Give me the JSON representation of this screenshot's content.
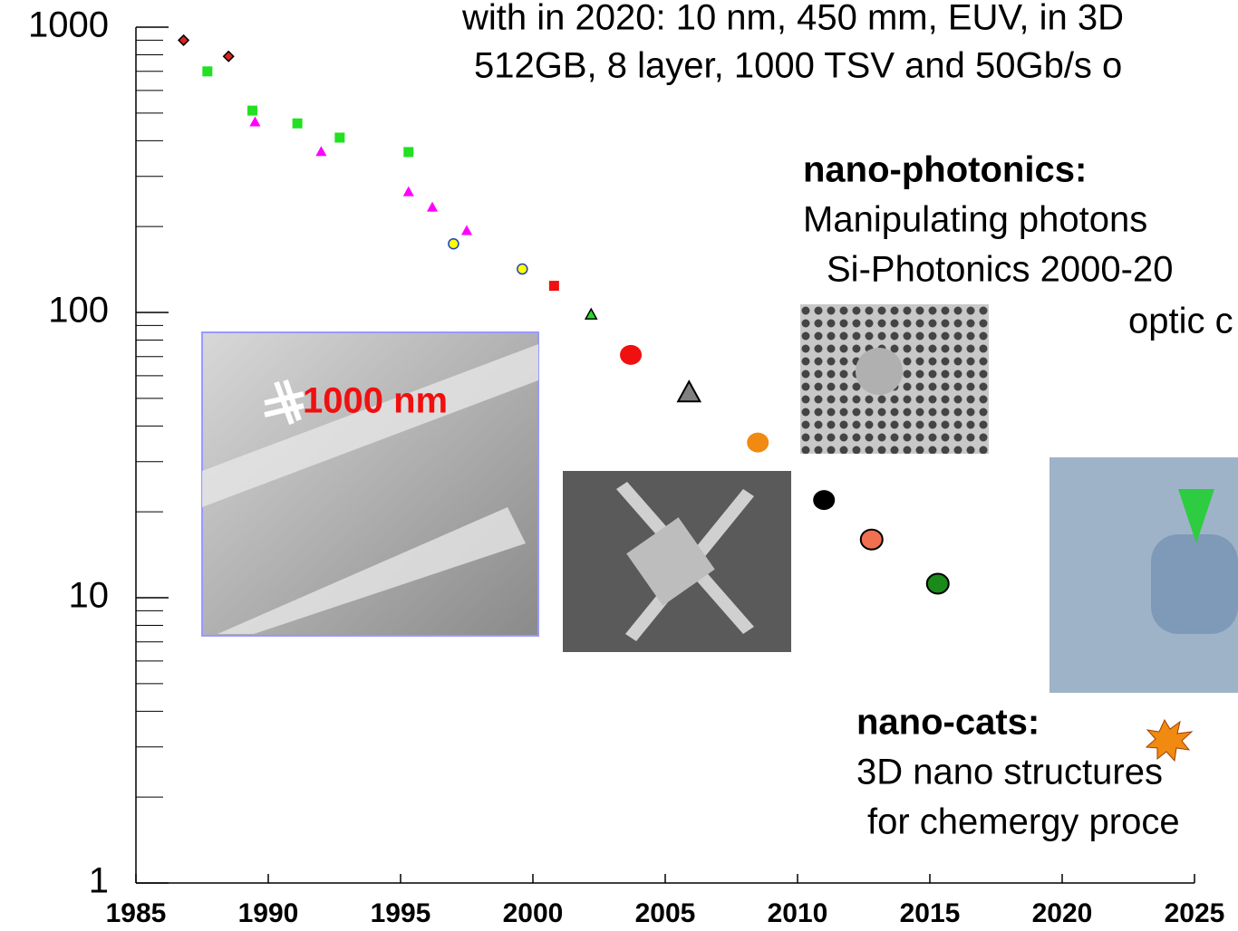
{
  "chart_data": {
    "type": "scatter",
    "yscale": "log",
    "xlim": [
      1985,
      2025
    ],
    "xticks": [
      1985,
      1990,
      1995,
      2000,
      2005,
      2010,
      2015,
      2020,
      2025
    ],
    "ylim": [
      1,
      1000
    ],
    "yticks": [
      1,
      10,
      100,
      1000
    ],
    "minor_yticks": [
      2,
      3,
      4,
      5,
      6,
      7,
      8,
      9,
      20,
      30,
      40,
      50,
      60,
      70,
      80,
      90,
      200,
      300,
      400,
      500,
      600,
      700,
      800,
      900
    ],
    "series": [
      {
        "marker": "diamond",
        "color": "#e02020",
        "edgecolor": "#000000",
        "x": [
          1986.8,
          1988.5
        ],
        "values": [
          900,
          790
        ]
      },
      {
        "marker": "square",
        "color": "#22e022",
        "x": [
          1987.7,
          1989.4,
          1991.1,
          1992.7,
          1995.3
        ],
        "values": [
          700,
          510,
          460,
          410,
          365
        ]
      },
      {
        "marker": "triangle",
        "color": "#ff00ff",
        "x": [
          1989.5,
          1992.0,
          1995.3,
          1996.2,
          1997.5
        ],
        "values": [
          464,
          365,
          264,
          233,
          193
        ]
      },
      {
        "marker": "circle",
        "color": "#ffff00",
        "edgecolor": "#2040c0",
        "x": [
          1997.0,
          1999.6
        ],
        "values": [
          174,
          142
        ]
      },
      {
        "marker": "square",
        "color": "#f01010",
        "x": [
          2000.8
        ],
        "values": [
          124
        ]
      },
      {
        "marker": "triangle",
        "color": "#22e022",
        "edgecolor": "#000000",
        "x": [
          2002.2
        ],
        "values": [
          98
        ]
      },
      {
        "marker": "circle-large",
        "color": "#f01010",
        "x": [
          2003.7
        ],
        "values": [
          71
        ]
      },
      {
        "marker": "triangle-large",
        "color": "#808080",
        "edgecolor": "#000000",
        "x": [
          2005.9
        ],
        "values": [
          52
        ]
      },
      {
        "marker": "circle-large",
        "color": "#f08a10",
        "x": [
          2008.5
        ],
        "values": [
          35
        ]
      },
      {
        "marker": "circle-large",
        "color": "#000000",
        "x": [
          2011.0
        ],
        "values": [
          22
        ]
      },
      {
        "marker": "circle-large",
        "color": "#f07050",
        "edgecolor": "#000000",
        "x": [
          2012.8
        ],
        "values": [
          16
        ]
      },
      {
        "marker": "circle-large",
        "color": "#1a8a1a",
        "edgecolor": "#000000",
        "x": [
          2015.3
        ],
        "values": [
          11.2
        ]
      }
    ],
    "annotations": {
      "top_line1": "with in 2020: 10 nm, 450 mm, EUV, in 3D",
      "top_line2": "512GB, 8 layer, 1000 TSV and 50Gb/s o",
      "photonics_title": "nano-photonics:",
      "photonics_line1": "Manipulating photons",
      "photonics_line2": "Si-Photonics 2000-20",
      "photonics_line3": "optic c",
      "cats_title": "nano-cats:",
      "cats_line1": "3D nano structures",
      "cats_line2": "for chemergy proce",
      "image_label": "1000 nm"
    }
  }
}
